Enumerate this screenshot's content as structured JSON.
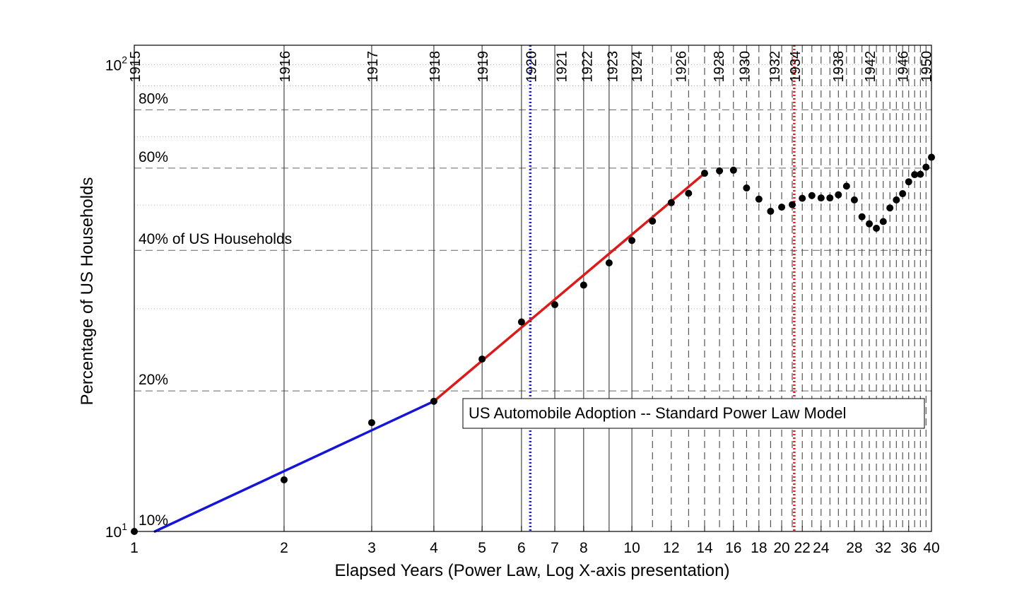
{
  "chart_data": {
    "type": "scatter",
    "title": "US Automobile Adoption -- Standard Power Law Model",
    "xlabel": "Elapsed Years (Power Law, Log X-axis presentation)",
    "ylabel": "Percentage of US Households",
    "x_scale": "log",
    "y_scale": "log",
    "xlim": [
      1,
      40
    ],
    "ylim": [
      10,
      110
    ],
    "x_ticks": [
      1,
      2,
      3,
      4,
      5,
      6,
      7,
      8,
      10,
      12,
      14,
      16,
      18,
      20,
      22,
      24,
      28,
      32,
      36,
      40
    ],
    "x_tick_labels": [
      "1",
      "2",
      "3",
      "4",
      "5",
      "6",
      "7",
      "8",
      "10",
      "12",
      "14",
      "16",
      "18",
      "20",
      "22",
      "24",
      "28",
      "32",
      "36",
      "40"
    ],
    "y_ticks": [
      {
        "value": 10,
        "base": "10",
        "exp": "1"
      },
      {
        "value": 100,
        "base": "10",
        "exp": "2"
      }
    ],
    "year_markers": [
      {
        "label": "1915",
        "x": 1
      },
      {
        "label": "1916",
        "x": 2
      },
      {
        "label": "1917",
        "x": 3
      },
      {
        "label": "1918",
        "x": 4
      },
      {
        "label": "1919",
        "x": 5
      },
      {
        "label": "1920",
        "x": 6.25
      },
      {
        "label": "1921",
        "x": 7.2
      },
      {
        "label": "1922",
        "x": 8.1
      },
      {
        "label": "1923",
        "x": 9.1
      },
      {
        "label": "1924",
        "x": 10.2
      },
      {
        "label": "1926",
        "x": 12.5
      },
      {
        "label": "1928",
        "x": 14.9
      },
      {
        "label": "1930",
        "x": 16.8
      },
      {
        "label": "1932",
        "x": 19.3
      },
      {
        "label": "1934",
        "x": 21.2
      },
      {
        "label": "1938",
        "x": 25.9
      },
      {
        "label": "1942",
        "x": 30.0
      },
      {
        "label": "1946",
        "x": 34.9
      },
      {
        "label": "1950",
        "x": 38.9
      }
    ],
    "year_gridlines_solid": [
      1,
      2,
      3,
      4,
      5,
      6,
      7,
      8,
      9,
      10
    ],
    "year_gridlines_dashed": [
      11,
      12,
      13,
      14,
      15,
      16,
      17,
      18,
      19,
      20,
      21,
      22,
      23,
      24,
      25,
      26,
      27,
      28,
      29,
      30,
      31,
      32,
      33,
      34,
      35,
      36,
      37,
      38,
      39,
      40
    ],
    "percent_gridlines": [
      {
        "label": "10%",
        "value": 10
      },
      {
        "label": "20%",
        "value": 20
      },
      {
        "label": "40% of US Households",
        "value": 40
      },
      {
        "label": "60%",
        "value": 60
      },
      {
        "label": "80%",
        "value": 80
      }
    ],
    "minor_gridlines": [
      30,
      50,
      70,
      90,
      100
    ],
    "vertical_markers": [
      {
        "x": 6.25,
        "color": "#1f1fd6",
        "style": "dotted"
      },
      {
        "x": 21.2,
        "color": "#e01f1f",
        "style": "dotted"
      }
    ],
    "series": [
      {
        "name": "",
        "type": "scatter",
        "color": "#000000",
        "points": [
          [
            1,
            10.0
          ],
          [
            2,
            12.9
          ],
          [
            3,
            17.1
          ],
          [
            4,
            19.0
          ],
          [
            5,
            23.4
          ],
          [
            6,
            28.1
          ],
          [
            7,
            30.6
          ],
          [
            8,
            33.7
          ],
          [
            9,
            37.6
          ],
          [
            10,
            42.0
          ],
          [
            11,
            46.2
          ],
          [
            12,
            50.6
          ],
          [
            13,
            53.0
          ],
          [
            14,
            58.5
          ],
          [
            15,
            59.2
          ],
          [
            16,
            59.4
          ],
          [
            17,
            54.4
          ],
          [
            18,
            51.5
          ],
          [
            19,
            48.5
          ],
          [
            20,
            49.5
          ],
          [
            21,
            50.1
          ],
          [
            22,
            51.7
          ],
          [
            23,
            52.4
          ],
          [
            24,
            51.8
          ],
          [
            25,
            51.8
          ],
          [
            26,
            52.6
          ],
          [
            27,
            54.9
          ],
          [
            28,
            51.3
          ],
          [
            29,
            47.2
          ],
          [
            30,
            45.6
          ],
          [
            31,
            44.6
          ],
          [
            32,
            46.1
          ],
          [
            33,
            49.3
          ],
          [
            34,
            51.3
          ],
          [
            35,
            52.9
          ],
          [
            36,
            56.1
          ],
          [
            37,
            58.1
          ],
          [
            38,
            58.2
          ],
          [
            39,
            60.3
          ],
          [
            40,
            63.3
          ]
        ]
      },
      {
        "name": "",
        "type": "line",
        "color": "#1515d8",
        "points": [
          [
            1.1,
            10.0
          ],
          [
            4,
            19.0
          ]
        ]
      },
      {
        "name": "",
        "type": "line",
        "color": "#e01818",
        "points": [
          [
            4,
            19.0
          ],
          [
            14,
            58.5
          ]
        ]
      }
    ],
    "legend_position": "lower-right"
  }
}
